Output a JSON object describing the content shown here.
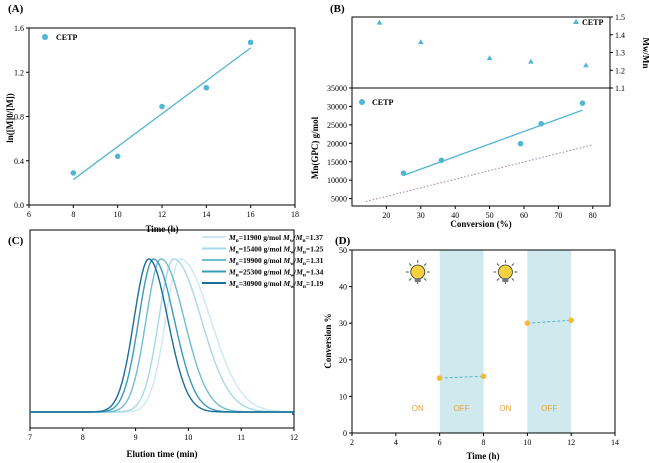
{
  "chart_data": [
    {
      "id": "A",
      "type": "scatter",
      "panel_label": "(A)",
      "title": "",
      "xlabel": "Time (h)",
      "ylabel": "ln([M]0/[M])",
      "xlim": [
        6,
        18
      ],
      "ylim": [
        0.0,
        1.6
      ],
      "xticks": [
        "6",
        "8",
        "10",
        "12",
        "14",
        "16",
        "18"
      ],
      "yticks": [
        "0.0",
        "0.4",
        "0.8",
        "1.2",
        "1.6"
      ],
      "legend": "CETP",
      "series": [
        {
          "name": "CETP",
          "x": [
            8,
            10,
            12,
            14,
            16
          ],
          "y": [
            0.29,
            0.44,
            0.89,
            1.06,
            1.47
          ]
        }
      ],
      "fit": {
        "x": [
          8,
          16
        ],
        "y": [
          0.23,
          1.42
        ]
      },
      "colors": {
        "marker": "#4fb6d4",
        "fit": "#4fb6d4"
      }
    },
    {
      "id": "B-top",
      "type": "scatter",
      "panel_label": "(B)",
      "ylabel": "Mw/Mn",
      "xlim": [
        10,
        85
      ],
      "ylim": [
        1.1,
        1.5
      ],
      "yticks": [
        "1.1",
        "1.2",
        "1.3",
        "1.4",
        "1.5"
      ],
      "legend": "CETP",
      "series": [
        {
          "name": "CETP",
          "x": [
            18,
            30,
            50,
            62,
            78
          ],
          "y": [
            1.47,
            1.36,
            1.27,
            1.25,
            1.23
          ]
        }
      ],
      "colors": {
        "marker": "#4fb6d4"
      }
    },
    {
      "id": "B-bottom",
      "type": "scatter",
      "xlabel": "Conversion (%)",
      "ylabel": "Mn(GPC) g/mol",
      "xlim": [
        10,
        85
      ],
      "ylim": [
        3000,
        35000
      ],
      "xticks": [
        "20",
        "30",
        "40",
        "50",
        "60",
        "70",
        "80"
      ],
      "yticks": [
        "5000",
        "10000",
        "15000",
        "20000",
        "25000",
        "30000",
        "35000"
      ],
      "legend": "CETP",
      "series": [
        {
          "name": "CETP",
          "x": [
            25,
            36,
            59,
            65,
            77
          ],
          "y": [
            11900,
            15400,
            19900,
            25300,
            30900
          ]
        }
      ],
      "fit": {
        "x": [
          25,
          77
        ],
        "y": [
          11300,
          29000
        ]
      },
      "theory": {
        "x": [
          14,
          80
        ],
        "y": [
          4200,
          19600
        ]
      },
      "colors": {
        "marker": "#4fb6d4",
        "fit": "#4fb6d4",
        "theory": "#a37fa3"
      }
    },
    {
      "id": "C",
      "type": "line",
      "panel_label": "(C)",
      "xlabel": "Elution time (min)",
      "xlim": [
        7,
        12
      ],
      "xticks": [
        "7",
        "8",
        "9",
        "10",
        "11",
        "12"
      ],
      "series": [
        {
          "name": "Mn=11900 g/mol Mw/Mn=1.37",
          "mn": "11900",
          "pdi": "1.37",
          "peak": 9.85,
          "color": "#cce8f2"
        },
        {
          "name": "Mn=15400 g/mol Mw/Mn=1.25",
          "mn": "15400",
          "pdi": "1.25",
          "peak": 9.72,
          "color": "#a6d8e8"
        },
        {
          "name": "Mn=19900 g/mol Mw/Mn=1.31",
          "mn": "19900",
          "pdi": "1.31",
          "peak": 9.48,
          "color": "#6fbdd0"
        },
        {
          "name": "Mn=25300 g/mol Mw/Mn=1.34",
          "mn": "25300",
          "pdi": "1.34",
          "peak": 9.34,
          "color": "#3a9ab8"
        },
        {
          "name": "Mn=30900 g/mol Mw/Mn=1.19",
          "mn": "30900",
          "pdi": "1.19",
          "peak": 9.25,
          "color": "#1a6e9a"
        }
      ]
    },
    {
      "id": "D",
      "type": "scatter",
      "panel_label": "(D)",
      "xlabel": "Time (h)",
      "ylabel": "Conversion %",
      "xlim": [
        2,
        14
      ],
      "ylim": [
        0,
        50
      ],
      "xticks": [
        "2",
        "4",
        "6",
        "8",
        "10",
        "12",
        "14"
      ],
      "yticks": [
        "0",
        "10",
        "20",
        "30",
        "40",
        "50"
      ],
      "series": [
        {
          "name": "conversion",
          "x": [
            6,
            8,
            10,
            12
          ],
          "y": [
            15,
            15.5,
            30,
            30.8
          ]
        }
      ],
      "segments": [
        {
          "x": [
            6,
            8
          ],
          "y": [
            15,
            15.5
          ]
        },
        {
          "x": [
            10,
            12
          ],
          "y": [
            30,
            30.8
          ]
        }
      ],
      "off_periods": [
        [
          6,
          8
        ],
        [
          10,
          12
        ]
      ],
      "period_labels": [
        {
          "text": "ON",
          "x": 5.0
        },
        {
          "text": "OFF",
          "x": 7.0
        },
        {
          "text": "ON",
          "x": 9.0
        },
        {
          "text": "OFF",
          "x": 11.0
        }
      ],
      "bulbs": [
        5.0,
        9.0
      ],
      "colors": {
        "marker": "#f5b93a",
        "line": "#4fb6d4",
        "shade": "#cfe9ef"
      }
    }
  ]
}
